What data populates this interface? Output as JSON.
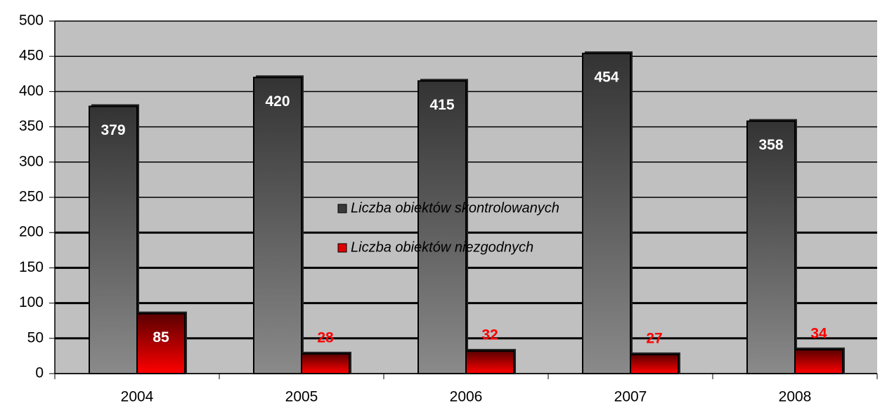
{
  "chart_data": {
    "type": "bar",
    "categories": [
      "2004",
      "2005",
      "2006",
      "2007",
      "2008"
    ],
    "series": [
      {
        "name": "Liczba obiektów skontrolowanych",
        "color": "#3a3a3a",
        "values": [
          379,
          420,
          415,
          454,
          358
        ]
      },
      {
        "name": "Liczba obiektów niezgodnych",
        "color": "#e00000",
        "values": [
          85,
          28,
          32,
          27,
          34
        ]
      }
    ],
    "ylim": [
      0,
      500
    ],
    "yticks": [
      0,
      50,
      100,
      150,
      200,
      250,
      300,
      350,
      400,
      450,
      500
    ],
    "grid": true,
    "legend": "center"
  }
}
